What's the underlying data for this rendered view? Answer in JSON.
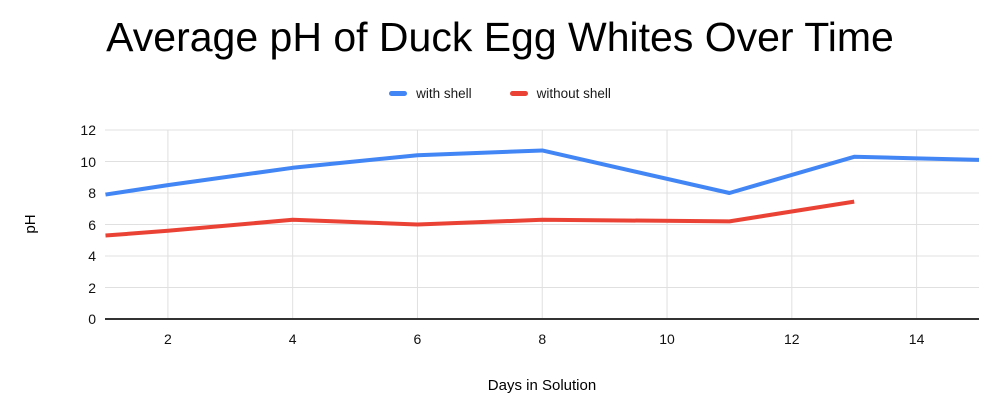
{
  "chart_data": {
    "type": "line",
    "title": "Average pH of Duck Egg Whites Over Time",
    "xlabel": "Days in Solution",
    "ylabel": "pH",
    "xlim": [
      1,
      15
    ],
    "ylim": [
      0,
      12
    ],
    "x_ticks": [
      2,
      4,
      6,
      8,
      10,
      12,
      14
    ],
    "y_ticks": [
      0,
      2,
      4,
      6,
      8,
      10,
      12
    ],
    "grid": true,
    "legend_position": "top",
    "series": [
      {
        "name": "with shell",
        "color": "#4285f4",
        "x": [
          1,
          2,
          4,
          6,
          8,
          11,
          13,
          14,
          15
        ],
        "y": [
          7.9,
          8.5,
          9.6,
          10.4,
          10.7,
          8.0,
          10.3,
          10.2,
          10.1
        ]
      },
      {
        "name": "without shell",
        "color": "#ea4335",
        "x": [
          1,
          2,
          4,
          6,
          8,
          11,
          13
        ],
        "y": [
          5.3,
          5.6,
          6.3,
          6.0,
          6.3,
          6.2,
          7.45
        ]
      }
    ]
  },
  "colors": {
    "gridline": "#e0e0e0",
    "axis_line": "#333333",
    "title_text": "#000000",
    "tick_text": "#111111"
  }
}
